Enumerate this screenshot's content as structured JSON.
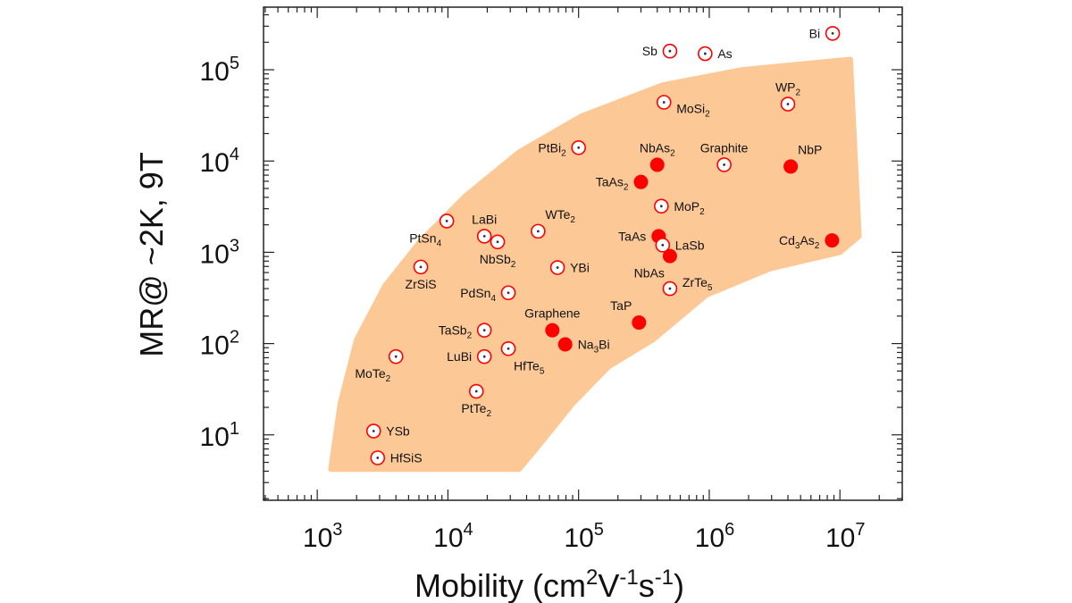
{
  "chart_data": {
    "type": "scatter",
    "title": "",
    "xlabel": "Mobility (cm2V-1s-1)",
    "xlabel_parts": [
      "Mobility (cm",
      "2",
      "V",
      "-1",
      "s",
      "-1",
      ")"
    ],
    "ylabel": "MR@ ~2K, 9T",
    "xscale": "log",
    "yscale": "log",
    "xlim": [
      388,
      30000000
    ],
    "ylim": [
      1.92,
      485000
    ],
    "x_ticks": [
      1000,
      10000,
      100000,
      1000000,
      10000000
    ],
    "x_tick_labels": [
      {
        "base": "10",
        "exp": "3"
      },
      {
        "base": "10",
        "exp": "4"
      },
      {
        "base": "10",
        "exp": "5"
      },
      {
        "base": "10",
        "exp": "6"
      },
      {
        "base": "10",
        "exp": "7"
      }
    ],
    "y_ticks": [
      10,
      100,
      1000,
      10000,
      100000
    ],
    "y_tick_labels": [
      {
        "base": "10",
        "exp": "1"
      },
      {
        "base": "10",
        "exp": "2"
      },
      {
        "base": "10",
        "exp": "3"
      },
      {
        "base": "10",
        "exp": "4"
      },
      {
        "base": "10",
        "exp": "5"
      }
    ],
    "grid": false,
    "colors": {
      "marker": "#ff0000",
      "region": "#fbc896",
      "axis": "#222222"
    },
    "region": [
      [
        1270,
        4.2
      ],
      [
        1500,
        22
      ],
      [
        2000,
        110
      ],
      [
        3300,
        430
      ],
      [
        6100,
        1300
      ],
      [
        13500,
        4100
      ],
      [
        35000,
        12500
      ],
      [
        105000,
        31000
      ],
      [
        440000,
        68000
      ],
      [
        1800000,
        100000
      ],
      [
        12000000,
        130000
      ],
      [
        14000000,
        1500
      ],
      [
        10000000,
        1000
      ],
      [
        2900000,
        660
      ],
      [
        950000,
        340
      ],
      [
        370000,
        110
      ],
      [
        170000,
        56
      ],
      [
        90000,
        22
      ],
      [
        48000,
        7.2
      ],
      [
        35000,
        4.2
      ]
    ],
    "series": [
      {
        "name": "Bi",
        "x": 8800000,
        "y": 250000,
        "marker": "open",
        "label_pos": "left"
      },
      {
        "name": "Sb",
        "x": 500000,
        "y": 160000,
        "marker": "open",
        "label_pos": "left"
      },
      {
        "name": "As",
        "x": 930000,
        "y": 150000,
        "marker": "open",
        "label_pos": "right"
      },
      {
        "name": "WP2",
        "x": 4000000,
        "y": 42000,
        "marker": "open",
        "label_pos": "above"
      },
      {
        "name": "MoSi2",
        "x": 450000,
        "y": 44000,
        "marker": "open",
        "label_pos": "right-below"
      },
      {
        "name": "PtBi2",
        "x": 100000,
        "y": 14000,
        "marker": "open",
        "label_pos": "left"
      },
      {
        "name": "NbAs2",
        "x": 400000,
        "y": 9100,
        "marker": "filled",
        "label_pos": "above"
      },
      {
        "name": "TaAs2",
        "x": 300000,
        "y": 5900,
        "marker": "filled",
        "label_pos": "left"
      },
      {
        "name": "Graphite",
        "x": 1300000,
        "y": 9100,
        "marker": "open",
        "label_pos": "above"
      },
      {
        "name": "NbP",
        "x": 4200000,
        "y": 8700,
        "marker": "filled",
        "label_pos": "above-right"
      },
      {
        "name": "MoP2",
        "x": 430000,
        "y": 3200,
        "marker": "open",
        "label_pos": "right"
      },
      {
        "name": "WTe2",
        "x": 49000,
        "y": 1700,
        "marker": "open",
        "label_pos": "above-right"
      },
      {
        "name": "PtSn4",
        "x": 9800,
        "y": 2200,
        "marker": "open",
        "label_pos": "below-left"
      },
      {
        "name": "LaBi",
        "x": 19000,
        "y": 1500,
        "marker": "open",
        "label_pos": "above"
      },
      {
        "name": "NbSb2",
        "x": 24000,
        "y": 1300,
        "marker": "open",
        "label_pos": "below"
      },
      {
        "name": "TaAs",
        "x": 410000,
        "y": 1500,
        "marker": "filled",
        "label_pos": "left"
      },
      {
        "name": "LaSb",
        "x": 440000,
        "y": 1200,
        "marker": "open",
        "label_pos": "right"
      },
      {
        "name": "NbAs",
        "x": 500000,
        "y": 910,
        "marker": "filled",
        "label_pos": "below-left"
      },
      {
        "name": "Cd3As2",
        "x": 8700000,
        "y": 1350,
        "marker": "filled",
        "label_pos": "left"
      },
      {
        "name": "ZrSiS",
        "x": 6200,
        "y": 690,
        "marker": "open",
        "label_pos": "below"
      },
      {
        "name": "YBi",
        "x": 69000,
        "y": 680,
        "marker": "open",
        "label_pos": "right"
      },
      {
        "name": "PdSn4",
        "x": 29000,
        "y": 360,
        "marker": "open",
        "label_pos": "left"
      },
      {
        "name": "ZrTe5",
        "x": 500000,
        "y": 400,
        "marker": "open",
        "label_pos": "right-above"
      },
      {
        "name": "TaP",
        "x": 290000,
        "y": 170,
        "marker": "filled",
        "label_pos": "above-left"
      },
      {
        "name": "Graphene",
        "x": 63000,
        "y": 140,
        "marker": "filled",
        "label_pos": "above"
      },
      {
        "name": "Na3Bi",
        "x": 79000,
        "y": 98,
        "marker": "filled",
        "label_pos": "right"
      },
      {
        "name": "TaSb2",
        "x": 19000,
        "y": 140,
        "marker": "open",
        "label_pos": "left"
      },
      {
        "name": "HfTe5",
        "x": 29000,
        "y": 88,
        "marker": "open",
        "label_pos": "below-right"
      },
      {
        "name": "LuBi",
        "x": 19000,
        "y": 72,
        "marker": "open",
        "label_pos": "left"
      },
      {
        "name": "MoTe2",
        "x": 4000,
        "y": 72,
        "marker": "open",
        "label_pos": "below-left"
      },
      {
        "name": "PtTe2",
        "x": 16500,
        "y": 30,
        "marker": "open",
        "label_pos": "below"
      },
      {
        "name": "YSb",
        "x": 2700,
        "y": 11,
        "marker": "open",
        "label_pos": "right"
      },
      {
        "name": "HfSiS",
        "x": 2900,
        "y": 5.6,
        "marker": "open",
        "label_pos": "right"
      }
    ]
  }
}
